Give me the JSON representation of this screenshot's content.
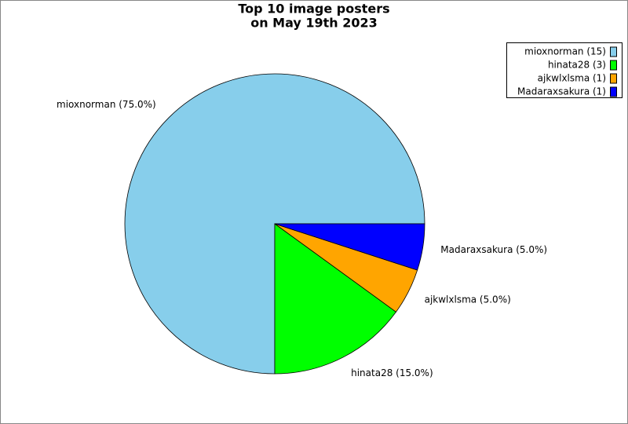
{
  "chart_data": {
    "type": "pie",
    "title": [
      "Top 10 image posters",
      "on May 19th 2023"
    ],
    "categories": [
      "mioxnorman",
      "hinata28",
      "ajkwlxlsma",
      "Madaraxsakura"
    ],
    "values": [
      75,
      15,
      5,
      5
    ],
    "value_labels": [
      "mioxnorman (75.0%)",
      "hinata28 (15.0%)",
      "ajkwlxlsma (5.0%)",
      "Madaraxsakura (5.0%)"
    ],
    "legend": [
      "mioxnorman (15)",
      "hinata28 (3)",
      "ajkwlxlsma (1)",
      "Madaraxsakura (1)"
    ],
    "colors": [
      "#87ceeb",
      "#00ff00",
      "#ffa500",
      "#0000ff"
    ],
    "legend_position": "upper right"
  }
}
